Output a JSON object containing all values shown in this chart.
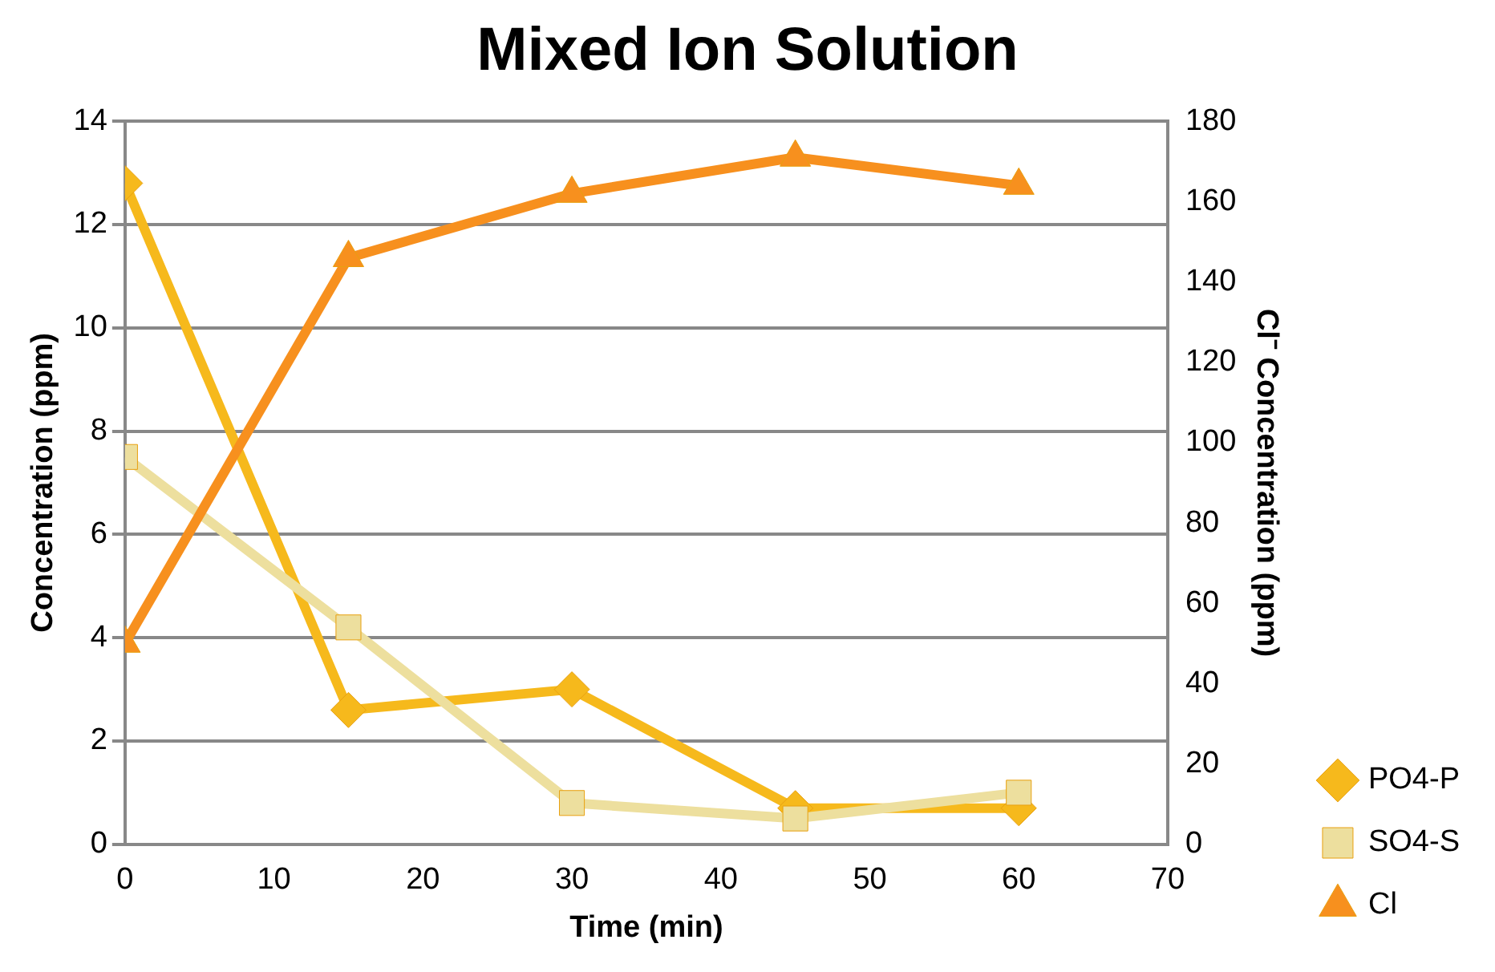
{
  "chart_data": {
    "type": "line",
    "title": "Mixed Ion Solution",
    "xlabel": "Time (min)",
    "ylabel": "Concentration (ppm)",
    "y2label": "Cl⁻ Concentration (ppm)",
    "x": [
      0,
      15,
      30,
      45,
      60
    ],
    "series": [
      {
        "name": "PO4-P",
        "color": "#f6b91c",
        "marker": "diamond",
        "values": [
          12.8,
          2.6,
          3.0,
          0.7,
          0.7
        ]
      },
      {
        "name": "SO4-S",
        "color": "#eddf9e",
        "marker": "square",
        "values": [
          7.5,
          4.2,
          0.8,
          0.5,
          1.0
        ]
      },
      {
        "name": "Cl",
        "color": "#f7901e",
        "marker": "triangle",
        "axis": "y2",
        "values": [
          50,
          146,
          162,
          171,
          164
        ]
      }
    ],
    "xlim": [
      0,
      70
    ],
    "xticks": [
      0,
      10,
      20,
      30,
      40,
      50,
      60,
      70
    ],
    "ylim": [
      0,
      14
    ],
    "yticks": [
      0,
      2,
      4,
      6,
      8,
      10,
      12,
      14
    ],
    "y2lim": [
      0,
      180
    ],
    "y2ticks": [
      0,
      20,
      40,
      60,
      80,
      100,
      120,
      140,
      160,
      180
    ],
    "grid": "y",
    "legend": "bottom right"
  }
}
